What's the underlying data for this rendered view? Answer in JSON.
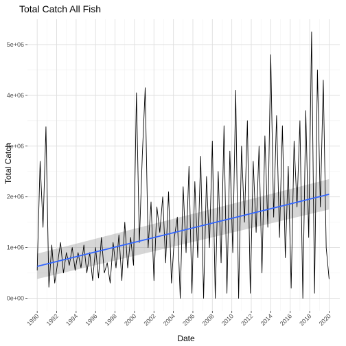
{
  "chart_data": {
    "type": "line",
    "title": "Total Catch All Fish",
    "xlabel": "Date",
    "ylabel": "Total Catch",
    "xlim": [
      1989.0,
      2021.1
    ],
    "ylim": [
      -250000,
      5500000
    ],
    "x_ticks": [
      1990,
      1992,
      1994,
      1996,
      1998,
      2000,
      2002,
      2004,
      2006,
      2008,
      2010,
      2012,
      2014,
      2016,
      2018,
      2020
    ],
    "x_tick_labels": [
      "1990",
      "1992",
      "1994",
      "1996",
      "1998",
      "2000",
      "2002",
      "2004",
      "2006",
      "2008",
      "2010",
      "2012",
      "2014",
      "2016",
      "2018",
      "2020"
    ],
    "y_ticks": [
      0,
      1000000,
      2000000,
      3000000,
      4000000,
      5000000
    ],
    "y_tick_labels": [
      "0e+00",
      "1e+06",
      "2e+06",
      "3e+06",
      "4e+06",
      "5e+06"
    ],
    "grid": true,
    "colors": {
      "series": "#000000",
      "trend": "#3366ff",
      "band": "#999999",
      "grid": "#dedede"
    },
    "series": [
      {
        "x": [
          1990.0,
          1990.3,
          1990.6,
          1990.9,
          1991.2,
          1991.5,
          1991.8,
          1992.1,
          1992.4,
          1992.7,
          1993.0,
          1993.3,
          1993.6,
          1993.9,
          1994.2,
          1994.5,
          1994.8,
          1995.1,
          1995.4,
          1995.7,
          1996.0,
          1996.3,
          1996.6,
          1996.9,
          1997.2,
          1997.5,
          1997.8,
          1998.1,
          1998.4,
          1998.7,
          1999.0,
          1999.3,
          1999.6,
          1999.9,
          2000.2,
          2000.5,
          2000.8,
          2001.1,
          2001.4,
          2001.7,
          2002.0,
          2002.3,
          2002.6,
          2002.9,
          2003.2,
          2003.5,
          2003.8,
          2004.1,
          2004.4,
          2004.7,
          2005.0,
          2005.3,
          2005.6,
          2005.9,
          2006.2,
          2006.5,
          2006.8,
          2007.1,
          2007.4,
          2007.7,
          2008.0,
          2008.3,
          2008.6,
          2008.9,
          2009.2,
          2009.5,
          2009.8,
          2010.1,
          2010.4,
          2010.7,
          2011.0,
          2011.3,
          2011.6,
          2011.9,
          2012.2,
          2012.5,
          2012.8,
          2013.1,
          2013.4,
          2013.7,
          2014.0,
          2014.3,
          2014.6,
          2014.9,
          2015.2,
          2015.5,
          2015.8,
          2016.1,
          2016.4,
          2016.7,
          2017.0,
          2017.3,
          2017.6,
          2017.9,
          2018.2,
          2018.5,
          2018.8,
          2019.1,
          2019.4,
          2019.7,
          2020.0
        ],
        "values": [
          550000,
          2700000,
          1400000,
          3380000,
          220000,
          1050000,
          300000,
          700000,
          1100000,
          500000,
          900000,
          650000,
          1000000,
          550000,
          900000,
          600000,
          1050000,
          500000,
          900000,
          350000,
          1000000,
          400000,
          1200000,
          500000,
          700000,
          300000,
          1100000,
          600000,
          1250000,
          350000,
          1500000,
          600000,
          1200000,
          650000,
          4050000,
          1100000,
          2800000,
          4150000,
          1000000,
          1900000,
          350000,
          1800000,
          1300000,
          2000000,
          700000,
          2100000,
          300000,
          1200000,
          1600000,
          0,
          2200000,
          900000,
          2600000,
          100000,
          2300000,
          800000,
          2800000,
          0,
          2400000,
          1000000,
          3100000,
          0,
          2500000,
          700000,
          3400000,
          100000,
          2900000,
          900000,
          4100000,
          0,
          3000000,
          1500000,
          3500000,
          100000,
          2700000,
          1300000,
          3000000,
          500000,
          3200000,
          1400000,
          4800000,
          1600000,
          3600000,
          1200000,
          3400000,
          800000,
          2600000,
          200000,
          3100000,
          1800000,
          3500000,
          0,
          3700000,
          1200000,
          5250000,
          100000,
          4500000,
          1800000,
          4300000,
          1000000,
          380000
        ]
      }
    ],
    "trend": {
      "x": [
        1990,
        2020
      ],
      "y": [
        630000,
        2050000
      ],
      "band_lower": [
        380000,
        1750000
      ],
      "band_upper": [
        880000,
        2350000
      ]
    }
  }
}
